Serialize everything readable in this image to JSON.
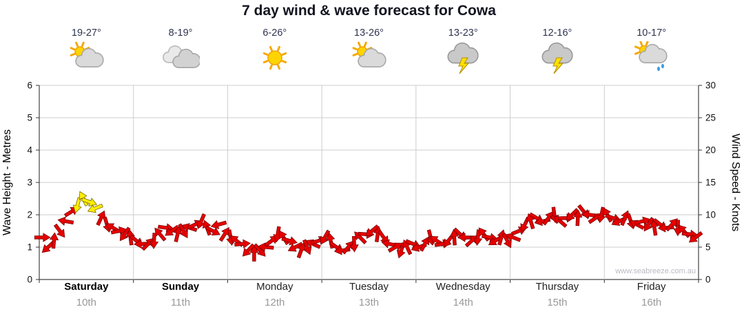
{
  "page": {
    "watermark": "www.seabreeze.com.au"
  },
  "chart_data": {
    "type": "wind-barb-timeseries",
    "title": "7 day wind & wave forecast for Cowa",
    "ylabel_left": "Wave Height - Metres",
    "ylabel_right": "Wind Speed - Knots",
    "ylim_left": [
      0,
      6
    ],
    "ylim_right": [
      0,
      30
    ],
    "yticks_left": [
      0,
      1,
      2,
      3,
      4,
      5,
      6
    ],
    "yticks_right": [
      0,
      5,
      10,
      15,
      20,
      25,
      30
    ],
    "grid": true,
    "legend": false,
    "days": [
      {
        "name": "Saturday",
        "date": "10th",
        "temp": "19-27°",
        "icon": "sun-cloud",
        "weekend": true
      },
      {
        "name": "Sunday",
        "date": "11th",
        "temp": "8-19°",
        "icon": "cloud",
        "weekend": true
      },
      {
        "name": "Monday",
        "date": "12th",
        "temp": "6-26°",
        "icon": "sun",
        "weekend": false
      },
      {
        "name": "Tuesday",
        "date": "13th",
        "temp": "13-26°",
        "icon": "sun-cloud",
        "weekend": false
      },
      {
        "name": "Wednesday",
        "date": "14th",
        "temp": "13-23°",
        "icon": "storm",
        "weekend": false
      },
      {
        "name": "Thursday",
        "date": "15th",
        "temp": "12-16°",
        "icon": "storm",
        "weekend": false
      },
      {
        "name": "Friday",
        "date": "16th",
        "temp": "10-17°",
        "icon": "sun-cloud-rain",
        "weekend": false
      }
    ],
    "series": [
      {
        "name": "Wind speed / wave height",
        "unit": "knots",
        "marker": "arrow",
        "color": "#e60000",
        "outline_color": "#7a0000",
        "highlight_color": "#ffee00",
        "highlight_outline_color": "#7a6a00",
        "points_per_day": 16,
        "values_knots": [
          6.5,
          5,
          6,
          7.5,
          9,
          10.5,
          11.5,
          12.5,
          12,
          11,
          9.5,
          8.5,
          8,
          7.5,
          7,
          6.5,
          6,
          5.5,
          5.5,
          6,
          7,
          8,
          7.5,
          7,
          7.5,
          8,
          8.5,
          9,
          8,
          7.5,
          8.5,
          7,
          6.5,
          6,
          5.5,
          4.5,
          4,
          4.5,
          5,
          6,
          7,
          6.5,
          6,
          5,
          4.5,
          5,
          5.5,
          6,
          6.5,
          6,
          5,
          4.5,
          5,
          5.5,
          6.5,
          7,
          7.5,
          7,
          6.5,
          5.5,
          5,
          4.5,
          5,
          5.5,
          5,
          5.5,
          6.5,
          6,
          5.5,
          6,
          6.5,
          7,
          6.5,
          6,
          6.5,
          7,
          6.5,
          6,
          6.5,
          6,
          6.5,
          7.5,
          8.5,
          9,
          9.5,
          9,
          9.5,
          10,
          9,
          9.5,
          10,
          9.5,
          10.5,
          10,
          9.5,
          10,
          10,
          9.5,
          9,
          9.5,
          9,
          8.5,
          9,
          8.5,
          8,
          8.5,
          8,
          8.5,
          8,
          7.5,
          7,
          6.5
        ],
        "highlight_indices": [
          6,
          7,
          8,
          9
        ]
      }
    ]
  }
}
